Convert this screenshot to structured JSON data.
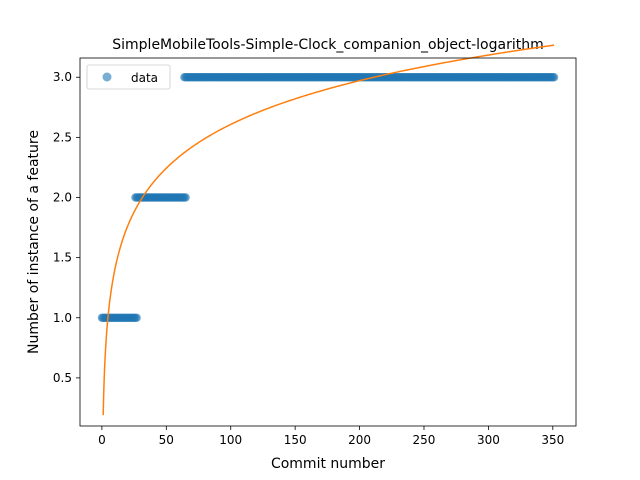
{
  "chart_data": {
    "type": "scatter",
    "title": "SimpleMobileTools-Simple-Clock_companion_object-logarithm",
    "xlabel": "Commit number",
    "ylabel": "Number of instance of a feature",
    "xlim": [
      -17,
      368
    ],
    "ylim": [
      0.1,
      3.16
    ],
    "xticks": [
      0,
      50,
      100,
      150,
      200,
      250,
      300,
      350
    ],
    "yticks": [
      0.5,
      1.0,
      1.5,
      2.0,
      2.5,
      3.0
    ],
    "ytick_labels": [
      "0.5",
      "1.0",
      "1.5",
      "2.0",
      "2.5",
      "3.0"
    ],
    "grid": false,
    "legend": {
      "position": "top-left",
      "entries": [
        "data"
      ]
    },
    "colors": {
      "data": "#1f77b4",
      "fit": "#ff7f0e"
    },
    "series": [
      {
        "name": "data",
        "kind": "points",
        "segments": [
          {
            "x_start": 0,
            "x_end": 27,
            "y": 1.0
          },
          {
            "x_start": 26,
            "x_end": 65,
            "y": 2.0
          },
          {
            "x_start": 64,
            "x_end": 351,
            "y": 3.0
          }
        ]
      },
      {
        "kind": "line",
        "model": "logarithmic",
        "a": 0.19,
        "b": 0.525,
        "x_start": 1,
        "x_end": 351
      }
    ]
  }
}
